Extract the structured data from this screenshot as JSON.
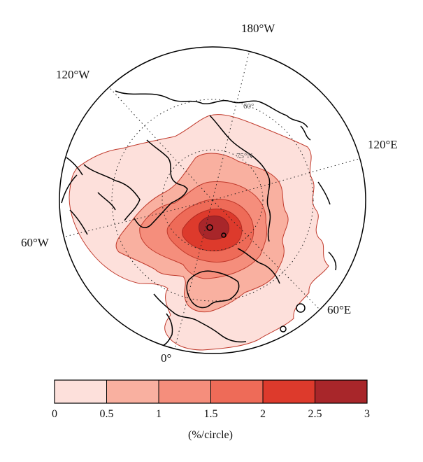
{
  "map": {
    "longitude_labels": {
      "w180": "180°W",
      "w120": "120°W",
      "w60": "60°W",
      "zero": "0°",
      "e60": "60°E",
      "e120": "120°E"
    },
    "latitude_labels": {
      "lat60": "60°",
      "lat75": "75°N"
    },
    "projection": "north polar stereographic",
    "contour_levels": [
      0,
      0.5,
      1,
      1.5,
      2,
      2.5,
      3
    ],
    "fill_colors": [
      "#fde0db",
      "#f9b0a0",
      "#f58e7c",
      "#ee6b58",
      "#dd3a2c",
      "#a8262a"
    ],
    "contour_line_color": "#c0392b",
    "coastline_color": "#000000"
  },
  "colorbar": {
    "ticks": [
      "0",
      "0.5",
      "1",
      "1.5",
      "2",
      "2.5",
      "3"
    ],
    "unit": "(%/circle)",
    "colors": [
      "#fde0db",
      "#f9b0a0",
      "#f58e7c",
      "#ee6b58",
      "#dd3a2c",
      "#a8262a"
    ]
  }
}
